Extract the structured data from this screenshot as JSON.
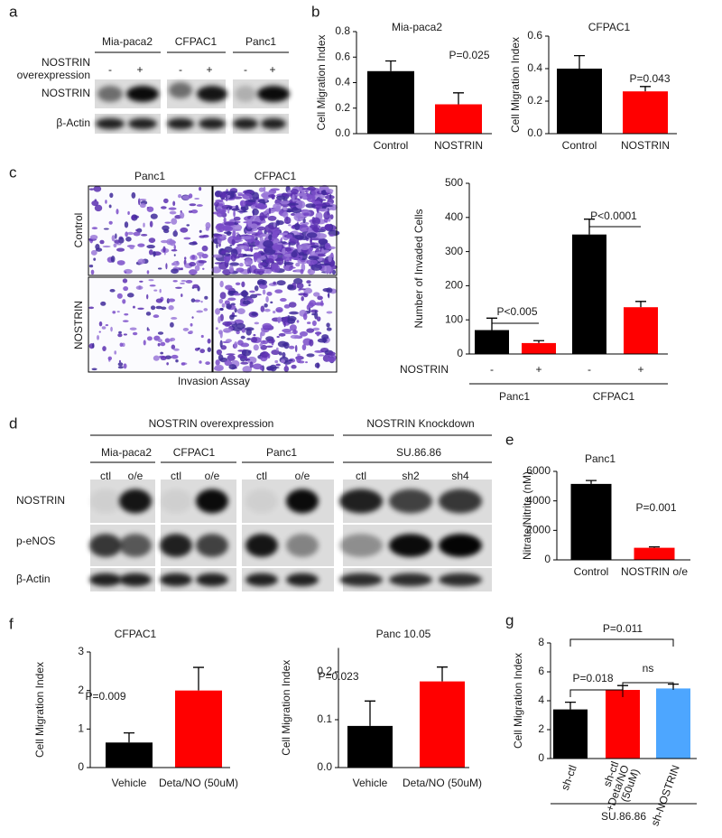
{
  "panels": [
    "a",
    "b",
    "c",
    "d",
    "e",
    "f",
    "g"
  ],
  "blot_a": {
    "lanes": [
      "Mia-paca2",
      "CFPAC1",
      "Panc1"
    ],
    "condition": [
      "NOSTRIN",
      "overexpression"
    ],
    "signs": [
      "-",
      "+",
      "-",
      "+",
      "-",
      "+"
    ],
    "rows": [
      "NOSTRIN",
      "β-Actin"
    ]
  },
  "images_c": {
    "columns": [
      "Panc1",
      "CFPAC1"
    ],
    "rows": [
      "Control",
      "NOSTRIN"
    ],
    "caption": "Invasion Assay"
  },
  "blot_d": {
    "groups": [
      "NOSTRIN overexpression",
      "NOSTRIN Knockdown"
    ],
    "lines": [
      "Mia-paca2",
      "CFPAC1",
      "Panc1",
      "SU.86.86"
    ],
    "lanes": [
      "ctl",
      "o/e",
      "ctl",
      "o/e",
      "ctl",
      "o/e",
      "ctl",
      "sh2",
      "sh4"
    ],
    "rows": [
      "NOSTRIN",
      "p-eNOS",
      "β-Actin"
    ]
  },
  "chart_data": [
    {
      "type": "bar",
      "title": "Mia-paca2",
      "ylabel": "Cell Migration Index",
      "categories": [
        "Control",
        "NOSTRIN"
      ],
      "values": [
        0.49,
        0.23
      ],
      "errors": [
        0.08,
        0.09
      ],
      "colors": [
        "#000000",
        "#ff0000"
      ],
      "ylim": [
        0,
        0.8
      ],
      "yticks": [
        {
          "value": 0,
          "label": "0.0"
        },
        0.2,
        0.4,
        0.6,
        0.8
      ],
      "annotations": [
        "P=0.025"
      ]
    },
    {
      "type": "bar",
      "title": "CFPAC1",
      "ylabel": "Cell Migration Index",
      "categories": [
        "Control",
        "NOSTRIN"
      ],
      "values": [
        0.4,
        0.26
      ],
      "errors": [
        0.08,
        0.03
      ],
      "colors": [
        "#000000",
        "#ff0000"
      ],
      "ylim": [
        0,
        0.6
      ],
      "yticks": [
        {
          "value": 0,
          "label": "0.0"
        },
        0.2,
        0.4,
        0.6
      ],
      "annotations": [
        "P=0.043"
      ]
    },
    {
      "type": "bar",
      "ylabel": "Number of Invaded Cells",
      "row_label": "NOSTRIN",
      "categories": [
        "-",
        "+",
        "-",
        "+"
      ],
      "groups": [
        "Panc1",
        "CFPAC1"
      ],
      "values": [
        70,
        32,
        350,
        137
      ],
      "errors": [
        35,
        7,
        45,
        17
      ],
      "colors": [
        "#000000",
        "#ff0000",
        "#000000",
        "#ff0000"
      ],
      "ylim": [
        0,
        500
      ],
      "yticks": [
        0,
        100,
        200,
        300,
        400,
        500
      ],
      "annotations": [
        "P<0.005",
        "P<0.0001"
      ]
    },
    {
      "type": "bar",
      "title": "Panc1",
      "ylabel": "Nitrate/Nitrite (nM)",
      "categories": [
        "Control",
        "NOSTRIN o/e"
      ],
      "values": [
        5150,
        820
      ],
      "errors": [
        230,
        60
      ],
      "colors": [
        "#000000",
        "#ff0000"
      ],
      "ylim": [
        0,
        6000
      ],
      "yticks": [
        0,
        2000,
        4000,
        6000
      ],
      "annotations": [
        "P=0.001"
      ]
    },
    {
      "type": "bar",
      "title": "CFPAC1",
      "ylabel": "Cell Migration Index",
      "categories": [
        "Vehicle",
        "Deta/NO (50uM)"
      ],
      "values": [
        0.65,
        2.0
      ],
      "errors": [
        0.25,
        0.6
      ],
      "colors": [
        "#000000",
        "#ff0000"
      ],
      "ylim": [
        0,
        3
      ],
      "yticks": [
        0,
        1,
        2,
        3
      ],
      "annotations": [
        "P=0.009"
      ]
    },
    {
      "type": "bar",
      "title": "Panc 10.05",
      "ylabel": "Cell Migration Index",
      "categories": [
        "Vehicle",
        "Deta/NO (50uM)"
      ],
      "values": [
        0.087,
        0.18
      ],
      "errors": [
        0.052,
        0.03
      ],
      "colors": [
        "#000000",
        "#ff0000"
      ],
      "ylim": [
        0,
        0.25
      ],
      "yticks": [
        {
          "value": 0,
          "label": "0.0"
        },
        0.1,
        0.2
      ],
      "annotations": [
        "P=0.023"
      ]
    },
    {
      "type": "bar",
      "ylabel": "Cell Migration Index",
      "categories": [
        [
          "sh-ctl"
        ],
        [
          "sh-ctl",
          "+Deta/NO",
          "(50uM)"
        ],
        [
          "sh-NOSTRIN"
        ]
      ],
      "group": "SU.86.86",
      "values": [
        3.4,
        4.75,
        4.85
      ],
      "errors": [
        0.5,
        0.3,
        0.3
      ],
      "colors": [
        "#000000",
        "#ff0000",
        "#4da6ff"
      ],
      "ylim": [
        0,
        8
      ],
      "yticks": [
        0,
        2,
        4,
        6,
        8
      ],
      "annotations": [
        "P=0.011",
        "P=0.018",
        "ns"
      ]
    }
  ]
}
